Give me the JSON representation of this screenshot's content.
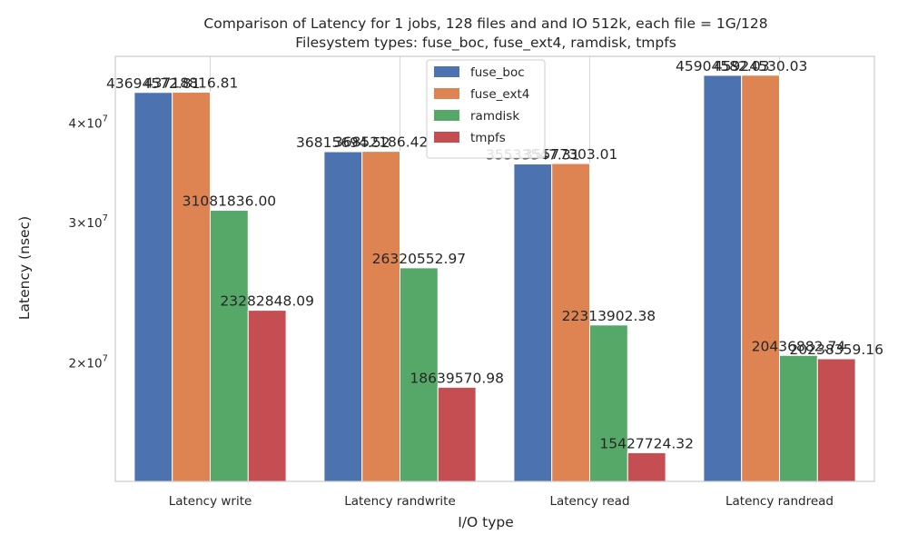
{
  "chart_data": {
    "type": "bar",
    "title": "Comparison of Latency for 1 jobs, 128 files and  and IO 512k, each file = 1G/128",
    "subtitle": "Filesystem types: fuse_boc, fuse_ext4, ramdisk, tmpfs",
    "xlabel": "I/O type",
    "ylabel": "Latency (nsec)",
    "yscale": "log",
    "ylim": [
      14200000,
      48500000
    ],
    "yticks": [
      {
        "value": 20000000,
        "base": "2",
        "exp": "7"
      },
      {
        "value": 30000000,
        "base": "3",
        "exp": "7"
      },
      {
        "value": 40000000,
        "base": "4",
        "exp": "7"
      }
    ],
    "categories": [
      "Latency write",
      "Latency randwrite",
      "Latency read",
      "Latency randread"
    ],
    "series": [
      {
        "name": "fuse_boc",
        "color": "#4c72b0",
        "values": [
          43694572.81,
          36815694.52,
          35533547.31,
          45904582.03
        ],
        "labels": [
          "43694572.81",
          "36815694.52",
          "35533547.31",
          "45904582.03"
        ]
      },
      {
        "name": "fuse_ext4",
        "color": "#dd8452",
        "values": [
          43718816.81,
          36852186.42,
          35577303.01,
          45924530.03
        ],
        "labels": [
          "43718816.81",
          "36852186.42",
          "35577303.01",
          "45924530.03"
        ]
      },
      {
        "name": "ramdisk",
        "color": "#55a868",
        "values": [
          31081836.0,
          26320552.97,
          22313902.38,
          20436882.74
        ],
        "labels": [
          "31081836.00",
          "26320552.97",
          "22313902.38",
          "20436882.74"
        ]
      },
      {
        "name": "tmpfs",
        "color": "#c44e52",
        "values": [
          23282848.09,
          18639570.98,
          15427724.32,
          20238359.16
        ],
        "labels": [
          "23282848.09",
          "18639570.98",
          "15427724.32",
          "20238359.16"
        ]
      }
    ],
    "grid": true,
    "legend_position": "top-center"
  }
}
